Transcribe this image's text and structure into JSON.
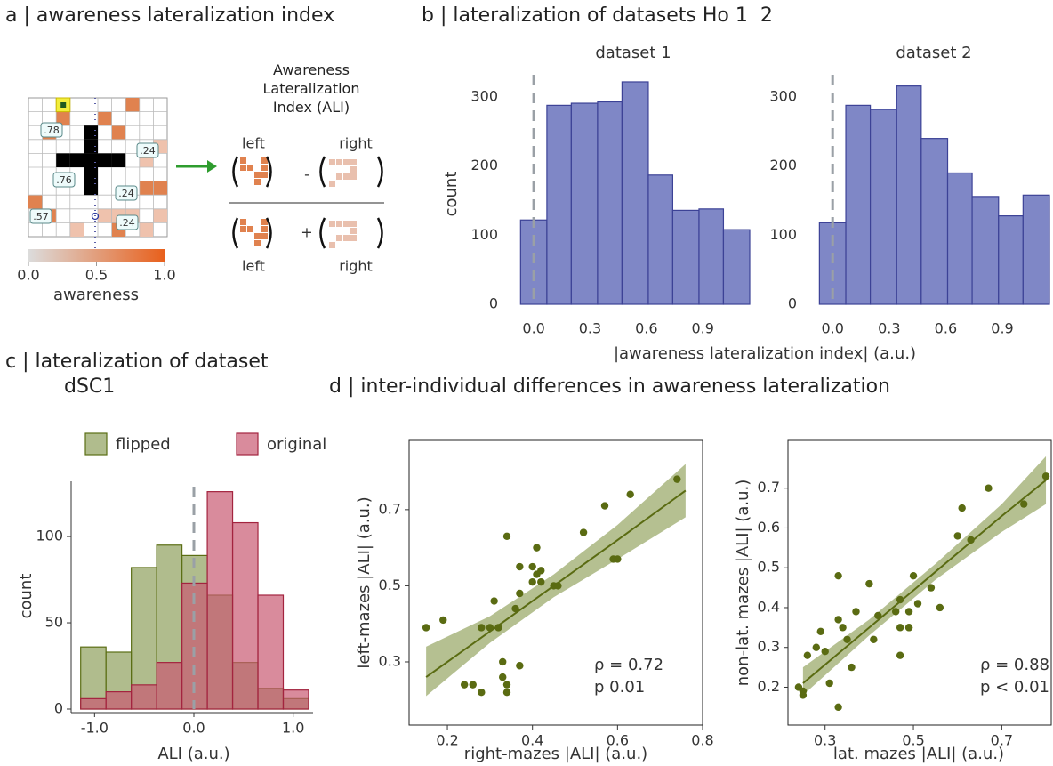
{
  "panels": {
    "a": {
      "title": "a | awareness lateralization index",
      "cell_labels": [
        ".78",
        ".24",
        ".76",
        ".24",
        ".57",
        ".24"
      ],
      "colorbar": {
        "lim": [
          0,
          1
        ],
        "ticks": [
          {
            "value": 0,
            "label": "0.0"
          },
          0.5,
          {
            "value": 1,
            "label": "1.0"
          }
        ],
        "label": "awareness",
        "colors": [
          "#dcdcdc",
          "#e8601c"
        ]
      },
      "formula": {
        "title": "Awareness Lateralization Index (ALI)",
        "labels": [
          "left",
          "right",
          "left",
          "right"
        ],
        "operators": [
          "-",
          "+"
        ]
      }
    },
    "b": {
      "title": "b | lateralization of datasets Ho 1  2",
      "xlabel": "|awareness lateralization index| (a.u.)"
    },
    "c": {
      "title": "c | lateralization of dataset dSC1"
    },
    "d": {
      "title": "d | inter-individual differences in awareness lateralization"
    }
  },
  "chart_data": [
    {
      "type": "histogram",
      "title": "dataset 1",
      "ylabel": "count",
      "bins": [
        -0.07,
        0.07,
        0.2,
        0.34,
        0.47,
        0.61,
        0.74,
        0.88,
        1.01,
        1.15
      ],
      "series": [
        {
          "color": "#7f87c6",
          "edge_color": "#3c4296",
          "values": [
            122,
            288,
            291,
            293,
            322,
            187,
            136,
            138,
            108
          ]
        }
      ],
      "xlim": [
        -0.1,
        1.15
      ],
      "ylim": [
        0,
        340
      ],
      "xticks": [
        {
          "value": 0,
          "label": "0.0"
        },
        0.3,
        0.6,
        0.9
      ],
      "yticks": [
        0,
        100,
        200,
        300
      ],
      "vline": 0
    },
    {
      "type": "histogram",
      "title": "dataset 2",
      "bins": [
        -0.07,
        0.07,
        0.2,
        0.34,
        0.47,
        0.61,
        0.74,
        0.88,
        1.01,
        1.15
      ],
      "series": [
        {
          "color": "#7f87c6",
          "edge_color": "#3c4296",
          "values": [
            118,
            288,
            282,
            316,
            240,
            190,
            156,
            128,
            158
          ]
        }
      ],
      "xlim": [
        -0.1,
        1.15
      ],
      "ylim": [
        0,
        340
      ],
      "xticks": [
        {
          "value": 0,
          "label": "0.0"
        },
        0.3,
        0.6,
        0.9
      ],
      "yticks": [
        0,
        100,
        200,
        300
      ],
      "vline": 0
    },
    {
      "type": "histogram",
      "xlabel": "ALI (a.u.)",
      "ylabel": "count",
      "legend": "top",
      "bins": [
        -1.14,
        -0.885,
        -0.63,
        -0.375,
        -0.12,
        0.135,
        0.39,
        0.645,
        0.9,
        1.155
      ],
      "series": [
        {
          "name": "flipped",
          "color": "#8f9f5c",
          "edge_color": "#5b6e14",
          "values": [
            36,
            33,
            82,
            95,
            89,
            66,
            27,
            12,
            6
          ]
        },
        {
          "name": "original",
          "color": "#c95a72",
          "edge_color": "#a3243f",
          "values": [
            6,
            10,
            14,
            27,
            73,
            126,
            108,
            66,
            11
          ]
        }
      ],
      "xlim": [
        -1.2,
        1.2
      ],
      "ylim": [
        0,
        132
      ],
      "xticks": [
        {
          "value": -1,
          "label": "-1.0"
        },
        {
          "value": 0,
          "label": "0.0"
        },
        {
          "value": 1,
          "label": "1.0"
        }
      ],
      "yticks": [
        0,
        50,
        100
      ],
      "vline": 0
    },
    {
      "type": "scatter",
      "xlabel": "right-mazes |ALI| (a.u.)",
      "ylabel": "left-mazes |ALI| (a.u.)",
      "color": "#5a6b12",
      "band_color": "#9cab6c",
      "x": [
        0.15,
        0.19,
        0.24,
        0.26,
        0.28,
        0.28,
        0.3,
        0.31,
        0.32,
        0.34,
        0.33,
        0.33,
        0.34,
        0.34,
        0.37,
        0.36,
        0.37,
        0.37,
        0.4,
        0.4,
        0.41,
        0.41,
        0.42,
        0.42,
        0.45,
        0.46,
        0.52,
        0.57,
        0.59,
        0.6,
        0.63,
        0.74
      ],
      "y": [
        0.39,
        0.41,
        0.24,
        0.24,
        0.22,
        0.39,
        0.39,
        0.46,
        0.39,
        0.63,
        0.3,
        0.26,
        0.24,
        0.22,
        0.29,
        0.44,
        0.48,
        0.55,
        0.55,
        0.51,
        0.53,
        0.6,
        0.54,
        0.51,
        0.5,
        0.5,
        0.64,
        0.71,
        0.57,
        0.57,
        0.74,
        0.78
      ],
      "fit_x": [
        0.15,
        0.3,
        0.45,
        0.6,
        0.76
      ],
      "fit_y": [
        0.26,
        0.38,
        0.5,
        0.62,
        0.75
      ],
      "ci_lower": [
        0.21,
        0.35,
        0.47,
        0.57,
        0.68
      ],
      "ci_upper": [
        0.34,
        0.42,
        0.53,
        0.66,
        0.82
      ],
      "xlim": [
        0.11,
        0.8
      ],
      "ylim": [
        0.134,
        0.882
      ],
      "xticks": [
        0.2,
        0.4,
        0.6,
        0.8
      ],
      "yticks": [
        0.3,
        0.5,
        0.7
      ],
      "annotations": [
        "ρ = 0.72",
        "p  0.01"
      ]
    },
    {
      "type": "scatter",
      "xlabel": "lat. mazes |ALI| (a.u.)",
      "ylabel": "non-lat. mazes |ALI| (a.u.)",
      "color": "#5a6b12",
      "band_color": "#9cab6c",
      "x": [
        0.24,
        0.25,
        0.25,
        0.26,
        0.28,
        0.29,
        0.3,
        0.31,
        0.33,
        0.34,
        0.33,
        0.33,
        0.35,
        0.36,
        0.37,
        0.41,
        0.42,
        0.4,
        0.46,
        0.47,
        0.47,
        0.47,
        0.49,
        0.49,
        0.49,
        0.5,
        0.51,
        0.54,
        0.56,
        0.6,
        0.61,
        0.63,
        0.67,
        0.75,
        0.8
      ],
      "y": [
        0.2,
        0.19,
        0.18,
        0.28,
        0.3,
        0.34,
        0.29,
        0.21,
        0.37,
        0.35,
        0.48,
        0.15,
        0.32,
        0.25,
        0.39,
        0.32,
        0.38,
        0.46,
        0.39,
        0.42,
        0.35,
        0.28,
        0.39,
        0.35,
        0.35,
        0.48,
        0.41,
        0.45,
        0.4,
        0.58,
        0.65,
        0.57,
        0.7,
        0.66,
        0.73
      ],
      "fit_x": [
        0.25,
        0.4,
        0.55,
        0.7,
        0.8
      ],
      "fit_y": [
        0.21,
        0.35,
        0.49,
        0.63,
        0.72
      ],
      "ci_lower": [
        0.18,
        0.33,
        0.47,
        0.59,
        0.66
      ],
      "ci_upper": [
        0.25,
        0.37,
        0.51,
        0.66,
        0.78
      ],
      "xlim": [
        0.216,
        0.812
      ],
      "ylim": [
        0.105,
        0.82
      ],
      "xticks": [
        0.3,
        0.5,
        0.7
      ],
      "yticks": [
        0.2,
        0.3,
        0.4,
        0.5,
        0.6,
        0.7
      ],
      "annotations": [
        "ρ = 0.88",
        "p < 0.01"
      ]
    }
  ]
}
